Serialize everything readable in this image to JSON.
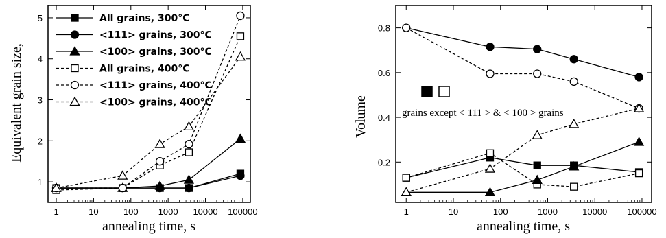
{
  "chart_data": [
    {
      "type": "line",
      "xscale": "log",
      "xlim": [
        0.6,
        160000
      ],
      "ylim": [
        0.5,
        5.3
      ],
      "xticks": [
        "1",
        "10",
        "100",
        "1000",
        "10000",
        "100000"
      ],
      "yticks": [
        "1",
        "2",
        "3",
        "4",
        "5"
      ],
      "xlabel": "annealing time, s",
      "ylabel": "Equivalent grain size,",
      "legend_position": "top-left",
      "series": [
        {
          "name": "All grains, 300°C",
          "marker": "square-filled",
          "line": "solid",
          "x": [
            1,
            60,
            600,
            3600,
            86400
          ],
          "y": [
            0.85,
            0.85,
            0.85,
            0.85,
            1.2
          ]
        },
        {
          "name": "<111> grains, 300°C",
          "marker": "circle-filled",
          "line": "solid",
          "x": [
            1,
            60,
            600,
            3600,
            86400
          ],
          "y": [
            0.85,
            0.85,
            0.85,
            0.85,
            1.15
          ]
        },
        {
          "name": "<100> grains, 300°C",
          "marker": "triangle-filled",
          "line": "solid",
          "x": [
            1,
            60,
            600,
            3600,
            86400
          ],
          "y": [
            0.85,
            0.85,
            0.9,
            1.05,
            2.05
          ]
        },
        {
          "name": "All grains, 400°C",
          "marker": "square-open",
          "line": "dashed",
          "x": [
            1,
            60,
            600,
            3600,
            86400
          ],
          "y": [
            0.8,
            0.85,
            1.4,
            1.72,
            4.55
          ]
        },
        {
          "name": "<111> grains, 400°C",
          "marker": "circle-open",
          "line": "dashed",
          "x": [
            1,
            60,
            600,
            3600,
            86400
          ],
          "y": [
            0.85,
            0.85,
            1.5,
            1.92,
            5.05
          ]
        },
        {
          "name": "<100> grains, 400°C",
          "marker": "triangle-open",
          "line": "dashed",
          "x": [
            1,
            60,
            600,
            3600,
            86400
          ],
          "y": [
            0.85,
            1.15,
            1.92,
            2.35,
            4.05
          ]
        }
      ]
    },
    {
      "type": "line",
      "xscale": "log",
      "xlim": [
        0.6,
        160000
      ],
      "ylim": [
        0.02,
        0.9
      ],
      "xticks": [
        "1",
        "10",
        "100",
        "1000",
        "10000",
        "100000"
      ],
      "yticks": [
        "0.2",
        "0.4",
        "0.6",
        "0.8"
      ],
      "xlabel": "annealing time, s",
      "ylabel": "Volume",
      "annotation": "grains except < 111 > & < 100 > grains",
      "series": [
        {
          "marker": "circle-filled",
          "line": "solid",
          "x": [
            1,
            60,
            600,
            3600,
            86400
          ],
          "y": [
            0.8,
            0.715,
            0.705,
            0.66,
            0.58
          ]
        },
        {
          "marker": "circle-open",
          "line": "dashed",
          "x": [
            1,
            60,
            600,
            3600,
            86400
          ],
          "y": [
            0.8,
            0.595,
            0.595,
            0.56,
            0.44
          ]
        },
        {
          "marker": "square-filled",
          "line": "solid",
          "x": [
            1,
            60,
            600,
            3600,
            86400
          ],
          "y": [
            0.13,
            0.22,
            0.185,
            0.185,
            0.155
          ]
        },
        {
          "marker": "square-open",
          "line": "dashed",
          "x": [
            1,
            60,
            600,
            3600,
            86400
          ],
          "y": [
            0.13,
            0.24,
            0.1,
            0.09,
            0.15
          ]
        },
        {
          "marker": "triangle-filled",
          "line": "solid",
          "x": [
            1,
            60,
            600,
            3600,
            86400
          ],
          "y": [
            0.065,
            0.065,
            0.12,
            0.18,
            0.29
          ]
        },
        {
          "marker": "triangle-open",
          "line": "dashed",
          "x": [
            1,
            60,
            600,
            3600,
            86400
          ],
          "y": [
            0.065,
            0.17,
            0.32,
            0.37,
            0.44
          ]
        }
      ]
    }
  ],
  "legend_sample_markers": [
    "square-filled",
    "square-open"
  ]
}
